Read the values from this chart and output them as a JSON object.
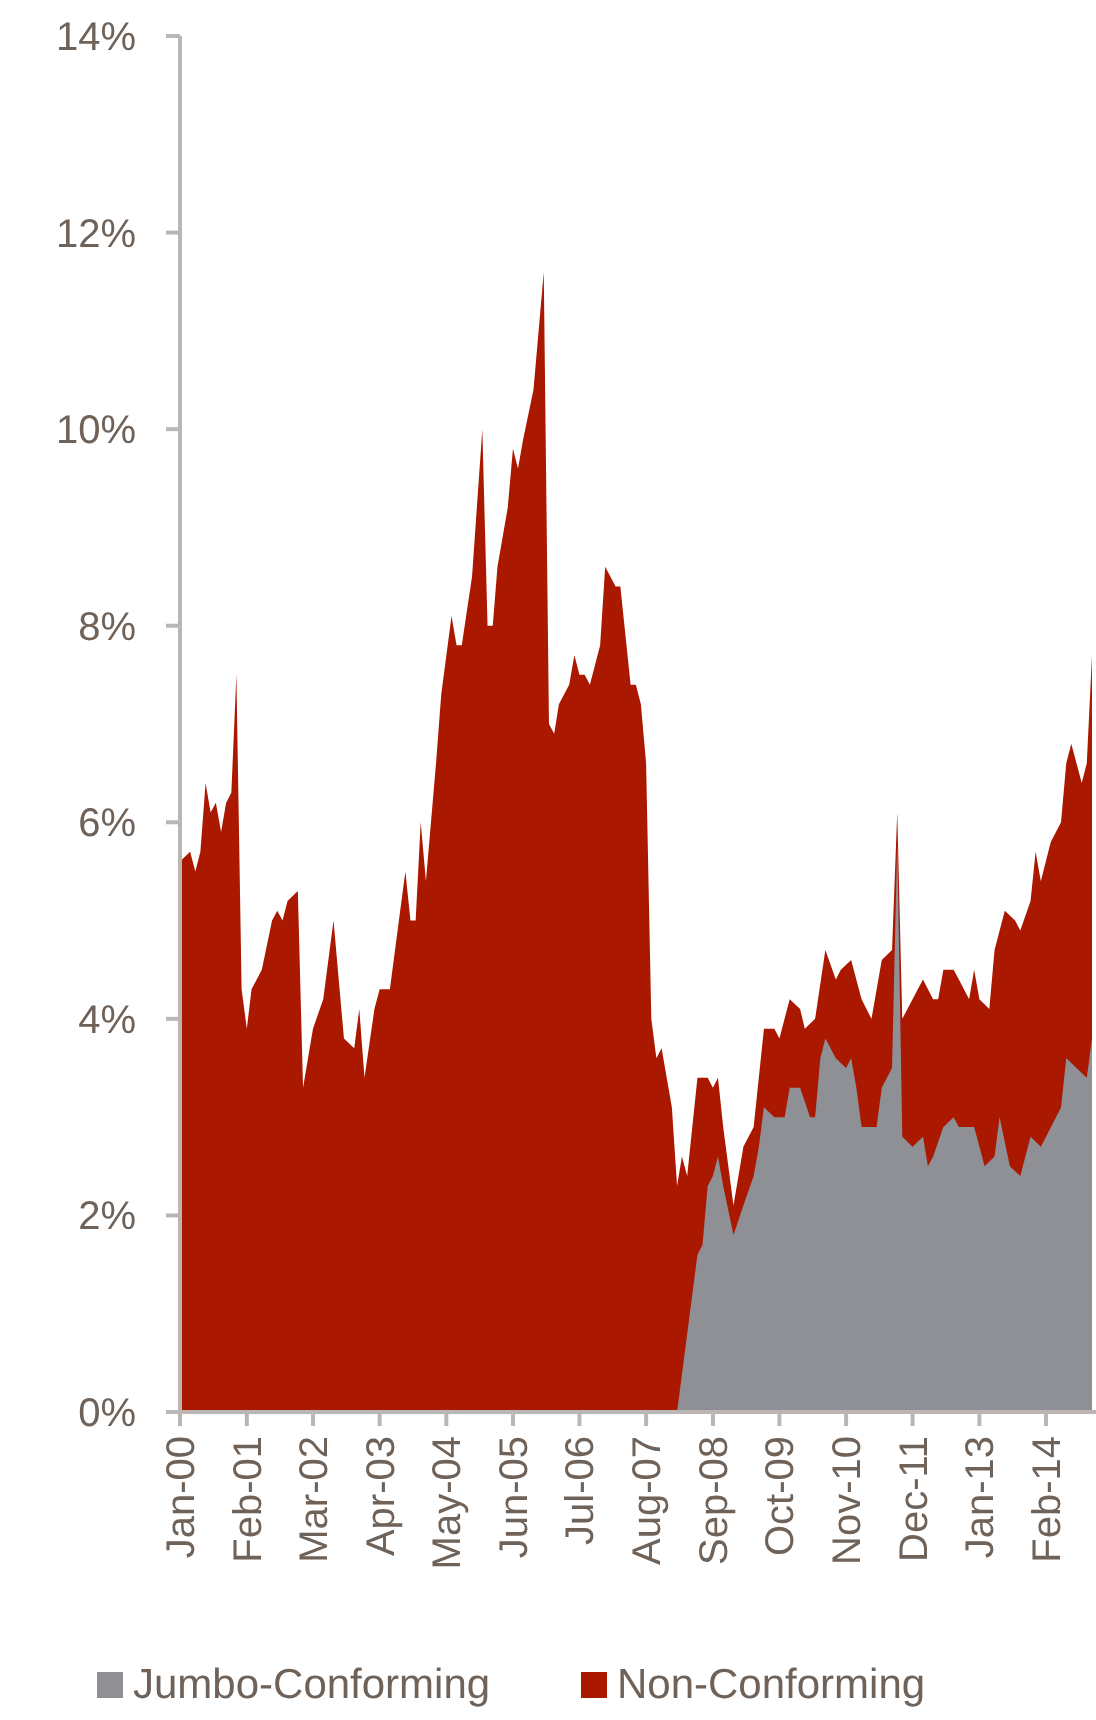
{
  "chart_data": {
    "type": "area",
    "xlim": [
      "2000-01",
      "2014-11"
    ],
    "xticks": [
      {
        "value": "2000-01",
        "label": "Jan-00"
      },
      {
        "value": "2001-02",
        "label": "Feb-01"
      },
      {
        "value": "2002-03",
        "label": "Mar-02"
      },
      {
        "value": "2003-04",
        "label": "Apr-03"
      },
      {
        "value": "2004-05",
        "label": "May-04"
      },
      {
        "value": "2005-06",
        "label": "Jun-05"
      },
      {
        "value": "2006-07",
        "label": "Jul-06"
      },
      {
        "value": "2007-08",
        "label": "Aug-07"
      },
      {
        "value": "2008-09",
        "label": "Sep-08"
      },
      {
        "value": "2009-10",
        "label": "Oct-09"
      },
      {
        "value": "2010-11",
        "label": "Nov-10"
      },
      {
        "value": "2011-12",
        "label": "Dec-11"
      },
      {
        "value": "2013-01",
        "label": "Jan-13"
      },
      {
        "value": "2014-02",
        "label": "Feb-14"
      }
    ],
    "ylim": [
      0,
      14
    ],
    "yticks": [
      {
        "value": 0,
        "label": "0%"
      },
      {
        "value": 2,
        "label": "2%"
      },
      {
        "value": 4,
        "label": "4%"
      },
      {
        "value": 6,
        "label": "6%"
      },
      {
        "value": 8,
        "label": "8%"
      },
      {
        "value": 10,
        "label": "10%"
      },
      {
        "value": 12,
        "label": "12%"
      },
      {
        "value": 14,
        "label": "14%"
      }
    ],
    "grid": false,
    "legend": "bottom",
    "series": [
      {
        "name": "Jumbo-Conforming",
        "color": "#8e9096",
        "x": [
          "2008-02",
          "2008-06",
          "2008-07",
          "2008-08",
          "2008-09",
          "2008-10",
          "2008-11",
          "2009-01",
          "2009-03",
          "2009-05",
          "2009-06",
          "2009-07",
          "2009-09",
          "2009-11",
          "2009-12",
          "2010-02",
          "2010-04",
          "2010-05",
          "2010-06",
          "2010-07",
          "2010-09",
          "2010-11",
          "2010-12",
          "2011-01",
          "2011-02",
          "2011-04",
          "2011-05",
          "2011-06",
          "2011-08",
          "2011-09",
          "2011-10",
          "2011-12",
          "2012-02",
          "2012-03",
          "2012-04",
          "2012-06",
          "2012-08",
          "2012-09",
          "2012-11",
          "2012-12",
          "2013-02",
          "2013-04",
          "2013-05",
          "2013-07",
          "2013-09",
          "2013-11",
          "2014-01",
          "2014-02",
          "2014-05",
          "2014-06",
          "2014-08",
          "2014-10",
          "2014-11"
        ],
        "values": [
          0,
          1.6,
          1.7,
          2.3,
          2.4,
          2.6,
          2.3,
          1.8,
          2.1,
          2.4,
          2.7,
          3.1,
          3.0,
          3.0,
          3.3,
          3.3,
          3.0,
          3.0,
          3.6,
          3.8,
          3.6,
          3.5,
          3.6,
          3.3,
          2.9,
          2.9,
          2.9,
          3.3,
          3.5,
          5.8,
          2.8,
          2.7,
          2.8,
          2.5,
          2.6,
          2.9,
          3.0,
          2.9,
          2.9,
          2.9,
          2.5,
          2.6,
          3.0,
          2.5,
          2.4,
          2.8,
          2.7,
          2.8,
          3.1,
          3.6,
          3.5,
          3.4,
          3.8
        ]
      },
      {
        "name": "Non-Conforming",
        "color": "#aa1800",
        "x": [
          "2000-01",
          "2000-03",
          "2000-04",
          "2000-05",
          "2000-06",
          "2000-07",
          "2000-08",
          "2000-09",
          "2000-10",
          "2000-11",
          "2000-12",
          "2001-01",
          "2001-02",
          "2001-03",
          "2001-05",
          "2001-07",
          "2001-08",
          "2001-09",
          "2001-10",
          "2001-12",
          "2002-01",
          "2002-03",
          "2002-05",
          "2002-07",
          "2002-09",
          "2002-11",
          "2002-12",
          "2003-01",
          "2003-03",
          "2003-04",
          "2003-06",
          "2003-08",
          "2003-09",
          "2003-10",
          "2003-11",
          "2003-12",
          "2004-01",
          "2004-03",
          "2004-04",
          "2004-06",
          "2004-07",
          "2004-08",
          "2004-10",
          "2004-12",
          "2005-01",
          "2005-02",
          "2005-03",
          "2005-05",
          "2005-06",
          "2005-07",
          "2005-08",
          "2005-10",
          "2005-12",
          "2006-01",
          "2006-02",
          "2006-03",
          "2006-05",
          "2006-06",
          "2006-07",
          "2006-08",
          "2006-09",
          "2006-11",
          "2006-12",
          "2007-02",
          "2007-03",
          "2007-05",
          "2007-06",
          "2007-07",
          "2007-08",
          "2007-09",
          "2007-10",
          "2007-11",
          "2008-01",
          "2008-02",
          "2008-03",
          "2008-04",
          "2008-06",
          "2008-08",
          "2008-09",
          "2008-10",
          "2008-11",
          "2009-01",
          "2009-03",
          "2009-05",
          "2009-07",
          "2009-09",
          "2009-10",
          "2009-12",
          "2010-02",
          "2010-03",
          "2010-05",
          "2010-07",
          "2010-09",
          "2010-10",
          "2010-12",
          "2011-02",
          "2011-04",
          "2011-06",
          "2011-08",
          "2011-09",
          "2011-10",
          "2011-12",
          "2012-02",
          "2012-04",
          "2012-05",
          "2012-06",
          "2012-08",
          "2012-09",
          "2012-11",
          "2012-12",
          "2013-01",
          "2013-03",
          "2013-04",
          "2013-06",
          "2013-08",
          "2013-09",
          "2013-11",
          "2013-12",
          "2014-01",
          "2014-03",
          "2014-05",
          "2014-06",
          "2014-07",
          "2014-09",
          "2014-10",
          "2014-11"
        ],
        "values": [
          5.6,
          5.7,
          5.5,
          5.7,
          6.4,
          6.1,
          6.2,
          5.9,
          6.2,
          6.3,
          7.5,
          4.3,
          3.9,
          4.3,
          4.5,
          5.0,
          5.1,
          5.0,
          5.2,
          5.3,
          3.3,
          3.9,
          4.2,
          5.0,
          3.8,
          3.7,
          4.1,
          3.4,
          4.1,
          4.3,
          4.3,
          5.1,
          5.5,
          5.0,
          5.0,
          6.0,
          5.4,
          6.6,
          7.3,
          8.1,
          7.8,
          7.8,
          8.5,
          10.0,
          8.0,
          8.0,
          8.6,
          9.2,
          9.8,
          9.6,
          9.9,
          10.4,
          11.6,
          7.0,
          6.9,
          7.2,
          7.4,
          7.7,
          7.5,
          7.5,
          7.4,
          7.8,
          8.6,
          8.4,
          8.4,
          7.4,
          7.4,
          7.2,
          6.6,
          4.0,
          3.6,
          3.7,
          3.1,
          2.3,
          2.6,
          2.4,
          3.4,
          3.4,
          3.3,
          3.4,
          2.9,
          2.1,
          2.7,
          2.9,
          3.9,
          3.9,
          3.8,
          4.2,
          4.1,
          3.9,
          4.0,
          4.7,
          4.4,
          4.5,
          4.6,
          4.2,
          4.0,
          4.6,
          4.7,
          6.1,
          4.0,
          4.2,
          4.4,
          4.2,
          4.2,
          4.5,
          4.5,
          4.4,
          4.2,
          4.5,
          4.2,
          4.1,
          4.7,
          5.1,
          5.0,
          4.9,
          5.2,
          5.7,
          5.4,
          5.8,
          6.0,
          6.6,
          6.8,
          6.4,
          6.6,
          7.7
        ]
      }
    ]
  }
}
